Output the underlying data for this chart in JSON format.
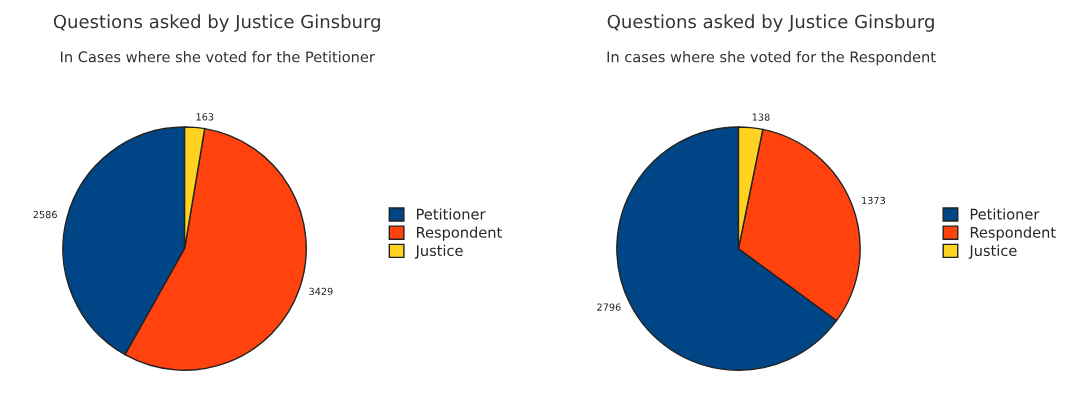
{
  "chart_data": [
    {
      "type": "pie",
      "title": "Questions asked by Justice Ginsburg",
      "subtitle": "In Cases where she voted for the Petitioner",
      "categories": [
        "Petitioner",
        "Respondent",
        "Justice"
      ],
      "values": [
        2586,
        3429,
        163
      ],
      "colors": [
        "#004586",
        "#ff420e",
        "#ffd320"
      ],
      "data_labels": true,
      "legend": "right"
    },
    {
      "type": "pie",
      "title": "Questions asked by Justice Ginsburg",
      "subtitle": "In cases where she voted for the Respondent",
      "categories": [
        "Petitioner",
        "Respondent",
        "Justice"
      ],
      "values": [
        2796,
        1373,
        138
      ],
      "colors": [
        "#004586",
        "#ff420e",
        "#ffd320"
      ],
      "data_labels": true,
      "legend": "right"
    }
  ]
}
